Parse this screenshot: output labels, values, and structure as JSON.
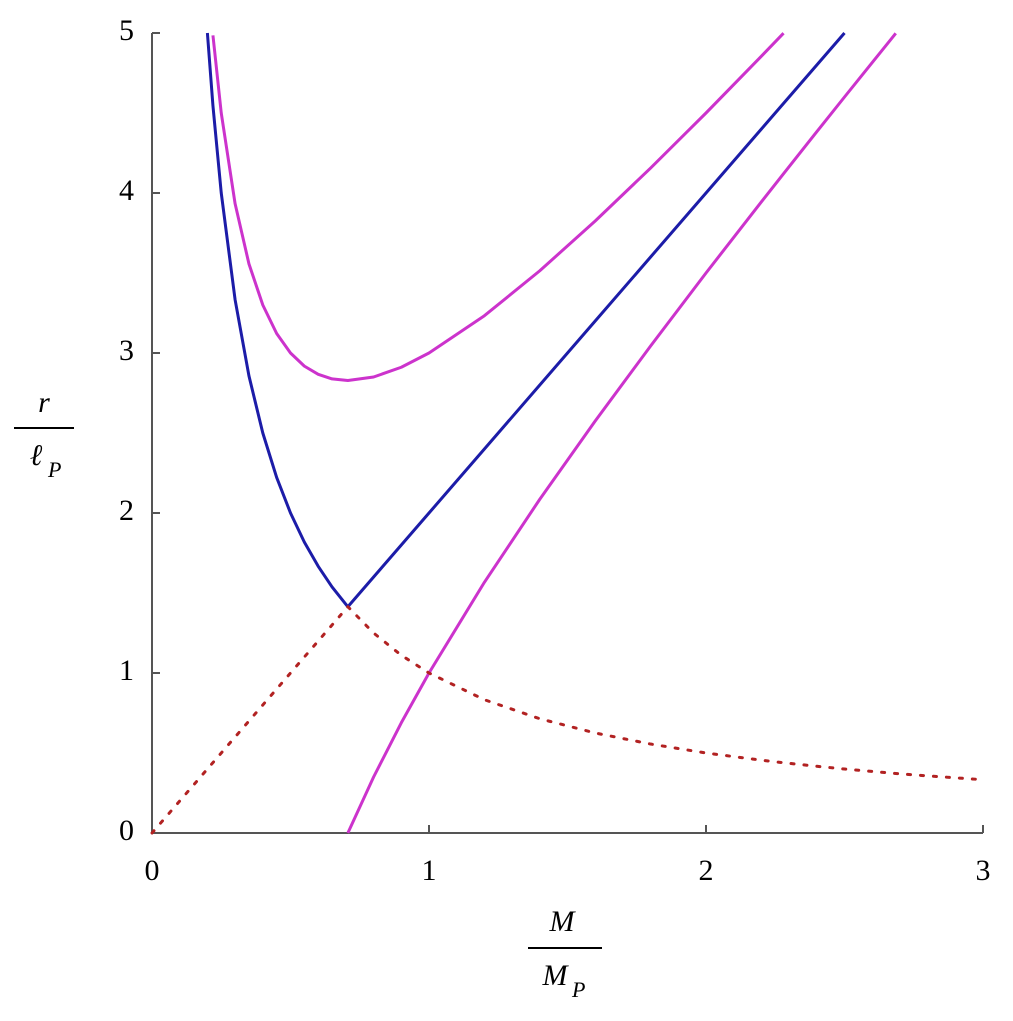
{
  "chart_data": {
    "type": "line",
    "x_label": {
      "numerator": "M",
      "denominator": "M",
      "subscript": "P"
    },
    "y_label": {
      "numerator": "r",
      "denominator": "ℓ",
      "subscript": "P"
    },
    "x": [
      0,
      0.1,
      0.2,
      0.22,
      0.25,
      0.3,
      0.35,
      0.4,
      0.45,
      0.5,
      0.55,
      0.6,
      0.65,
      0.7071,
      0.8,
      0.9,
      1.0,
      1.2,
      1.4,
      1.6,
      1.8,
      2.0,
      2.2,
      2.28,
      2.4,
      2.5,
      2.6,
      2.685,
      2.8,
      3.0
    ],
    "series": [
      {
        "color": "#1c1ca8",
        "style": "solid",
        "values": [
          null,
          null,
          5,
          4.545,
          4,
          3.333,
          2.857,
          2.5,
          2.222,
          2,
          1.818,
          1.667,
          1.538,
          1.414,
          1.6,
          1.8,
          2,
          2.4,
          2.8,
          3.2,
          3.6,
          4,
          4.4,
          4.56,
          4.8,
          5,
          null,
          null,
          null,
          null
        ]
      },
      {
        "color": "#cc33cc",
        "style": "solid",
        "values": [
          null,
          null,
          null,
          4.985,
          4.5,
          3.933,
          3.557,
          3.3,
          3.122,
          3,
          2.918,
          2.867,
          2.838,
          2.828,
          2.85,
          2.911,
          3,
          3.233,
          3.514,
          3.825,
          4.156,
          4.5,
          4.855,
          4.999,
          null,
          null,
          null,
          null,
          null,
          null
        ]
      },
      {
        "color": "#cc33cc",
        "style": "solid",
        "values": [
          null,
          null,
          null,
          null,
          null,
          null,
          null,
          null,
          null,
          null,
          null,
          null,
          null,
          0,
          0.35,
          0.689,
          1,
          1.567,
          2.086,
          2.575,
          3.044,
          3.5,
          3.945,
          4.121,
          4.383,
          4.6,
          4.815,
          4.998,
          null,
          null
        ]
      },
      {
        "color": "#b22222",
        "style": "dotted",
        "values": [
          0,
          0.2,
          0.4,
          0.44,
          0.5,
          0.6,
          0.7,
          0.8,
          0.9,
          1,
          1.1,
          1.2,
          1.3,
          1.414,
          1.25,
          1.111,
          1,
          0.833,
          0.714,
          0.625,
          0.556,
          0.5,
          0.455,
          0.439,
          0.417,
          0.4,
          0.385,
          0.372,
          0.357,
          0.333
        ]
      }
    ],
    "xlim": [
      0,
      3
    ],
    "ylim": [
      0,
      5
    ],
    "xticks": [
      0,
      1,
      2,
      3
    ],
    "yticks": [
      0,
      1,
      2,
      3,
      4,
      5
    ]
  }
}
